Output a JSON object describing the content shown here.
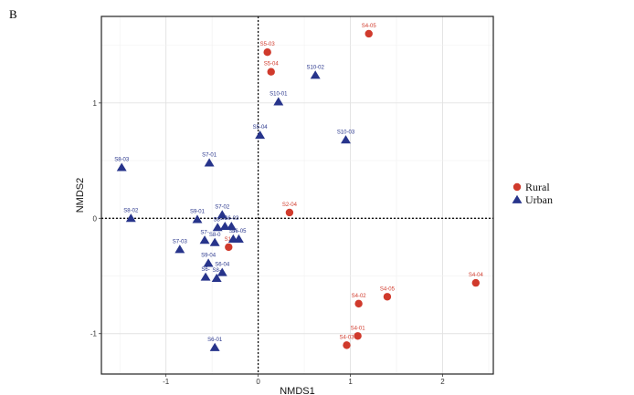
{
  "panel_label": "B",
  "chart_data": {
    "type": "scatter",
    "xlabel": "NMDS1",
    "ylabel": "NMDS2",
    "xlim": [
      -1.7,
      2.55
    ],
    "ylim": [
      -1.35,
      1.75
    ],
    "xticks": [
      -1,
      0,
      1,
      2
    ],
    "yticks": [
      -1,
      0,
      1
    ],
    "grid": true,
    "reference_lines": {
      "x": 0,
      "y": 0
    },
    "legend_position": "right",
    "colors": {
      "Rural": "#d03a2c",
      "Urban": "#27348b"
    },
    "series": [
      {
        "name": "Rural",
        "marker": "circle",
        "points": [
          {
            "label": "S4-05",
            "x": 1.2,
            "y": 1.6
          },
          {
            "label": "S5-03",
            "x": 0.1,
            "y": 1.44
          },
          {
            "label": "S5-04",
            "x": 0.14,
            "y": 1.27
          },
          {
            "label": "S2-04",
            "x": 0.34,
            "y": 0.05
          },
          {
            "label": "S1-",
            "x": -0.32,
            "y": -0.25
          },
          {
            "label": "S4-04",
            "x": 2.36,
            "y": -0.56
          },
          {
            "label": "S4-05",
            "x": 1.4,
            "y": -0.68
          },
          {
            "label": "S4-02",
            "x": 1.09,
            "y": -0.74
          },
          {
            "label": "S4-01",
            "x": 1.08,
            "y": -1.02
          },
          {
            "label": "S4-03",
            "x": 0.96,
            "y": -1.1
          }
        ]
      },
      {
        "name": "Urban",
        "marker": "triangle",
        "points": [
          {
            "label": "S10-02",
            "x": 0.62,
            "y": 1.24
          },
          {
            "label": "S10-01",
            "x": 0.22,
            "y": 1.01
          },
          {
            "label": "S10-03",
            "x": 0.95,
            "y": 0.68
          },
          {
            "label": "S5-04",
            "x": 0.02,
            "y": 0.72
          },
          {
            "label": "S8-03",
            "x": -1.48,
            "y": 0.44
          },
          {
            "label": "S7-01",
            "x": -0.53,
            "y": 0.48
          },
          {
            "label": "S8-02",
            "x": -1.38,
            "y": 0.0
          },
          {
            "label": "S9-01",
            "x": -0.66,
            "y": -0.01
          },
          {
            "label": "S7-02",
            "x": -0.39,
            "y": 0.03
          },
          {
            "label": "S8-",
            "x": -0.44,
            "y": -0.08
          },
          {
            "label": "S6-",
            "x": -0.36,
            "y": -0.07
          },
          {
            "label": "S6-03",
            "x": -0.29,
            "y": -0.07
          },
          {
            "label": "S7-",
            "x": -0.27,
            "y": -0.18
          },
          {
            "label": "S6-05",
            "x": -0.21,
            "y": -0.18
          },
          {
            "label": "S8-0",
            "x": -0.47,
            "y": -0.21
          },
          {
            "label": "S7-",
            "x": -0.58,
            "y": -0.19
          },
          {
            "label": "S7-03",
            "x": -0.85,
            "y": -0.27
          },
          {
            "label": "S9-04",
            "x": -0.54,
            "y": -0.39
          },
          {
            "label": "S6-",
            "x": -0.57,
            "y": -0.51
          },
          {
            "label": "S6-04",
            "x": -0.39,
            "y": -0.47
          },
          {
            "label": "S8-",
            "x": -0.45,
            "y": -0.52
          },
          {
            "label": "S6-01",
            "x": -0.47,
            "y": -1.12
          }
        ]
      }
    ]
  }
}
